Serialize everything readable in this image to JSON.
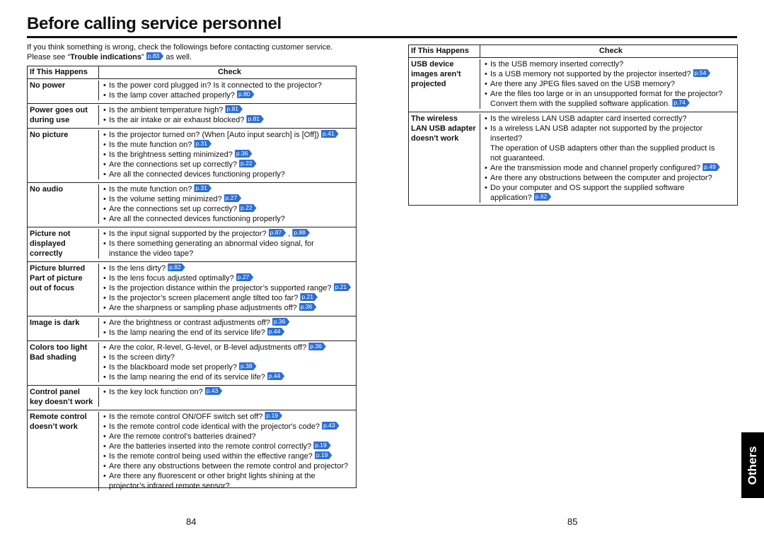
{
  "title": "Before calling service personnel",
  "intro": [
    [
      "If you think something is wrong, check the followings before contacting customer service."
    ],
    [
      "Please see “",
      {
        "b": "Trouble indications"
      },
      "” ",
      {
        "ref": "p.83"
      },
      " as well."
    ]
  ],
  "left_table": {
    "header": [
      "If This Happens",
      "Check"
    ],
    "rows": [
      {
        "problem": [
          "No power"
        ],
        "checks": [
          [
            [
              "Is the power cord plugged in? Is it connected to the projector?"
            ]
          ],
          [
            [
              "Is the lamp cover attached properly? ",
              {
                "ref": "p.80"
              }
            ]
          ]
        ]
      },
      {
        "problem": [
          "Power goes out",
          "during use"
        ],
        "checks": [
          [
            [
              "Is the ambient temperature high? ",
              {
                "ref": "p.81"
              }
            ]
          ],
          [
            [
              "Is the air intake or air exhaust blocked? ",
              {
                "ref": "p.81"
              }
            ]
          ]
        ]
      },
      {
        "problem": [
          "No picture"
        ],
        "checks": [
          [
            [
              "Is the projector turned on? (When [Auto input search] is [Off]) ",
              {
                "ref": "p.41"
              }
            ]
          ],
          [
            [
              "Is the mute function on? ",
              {
                "ref": "p.31"
              }
            ]
          ],
          [
            [
              "Is the brightness setting minimized? ",
              {
                "ref": "p.36"
              }
            ]
          ],
          [
            [
              "Are the connections set up correctly? ",
              {
                "ref": "p.22"
              }
            ]
          ],
          [
            [
              "Are all the connected devices functioning properly?"
            ]
          ]
        ]
      },
      {
        "problem": [
          "No audio"
        ],
        "checks": [
          [
            [
              "Is the mute function on? ",
              {
                "ref": "p.31"
              }
            ]
          ],
          [
            [
              "Is the volume setting minimized? ",
              {
                "ref": "p.27"
              }
            ]
          ],
          [
            [
              "Are the connections set up correctly? ",
              {
                "ref": "p.22"
              }
            ]
          ],
          [
            [
              "Are all the connected devices functioning properly?"
            ]
          ]
        ]
      },
      {
        "problem": [
          "Picture not",
          "displayed",
          "correctly"
        ],
        "checks": [
          [
            [
              "Is the input signal supported by the projector? ",
              {
                "ref": "p.87"
              },
              " , ",
              {
                "ref": "p.88"
              }
            ]
          ],
          [
            [
              "Is there something generating an abnormal video signal, for"
            ],
            [
              "instance the video tape?"
            ]
          ]
        ]
      },
      {
        "problem": [
          "Picture blurred",
          "Part of picture",
          "out of focus"
        ],
        "checks": [
          [
            [
              "Is the lens dirty? ",
              {
                "ref": "p.82"
              }
            ]
          ],
          [
            [
              "Is the lens focus adjusted optimally? ",
              {
                "ref": "p.27"
              }
            ]
          ],
          [
            [
              "Is the projection distance within the projector’s supported range? ",
              {
                "ref": "p.21"
              }
            ]
          ],
          [
            [
              "Is the projector’s screen placement angle tilted too far? ",
              {
                "ref": "p.21"
              }
            ]
          ],
          [
            [
              "Are the sharpness or sampling phase adjustments off? ",
              {
                "ref": "p.36"
              }
            ]
          ]
        ]
      },
      {
        "problem": [
          "Image is dark"
        ],
        "checks": [
          [
            [
              "Are the brightness or contrast adjustments off? ",
              {
                "ref": "p.36"
              }
            ]
          ],
          [
            [
              "Is the lamp nearing the end of its service life? ",
              {
                "ref": "p.44"
              }
            ]
          ]
        ]
      },
      {
        "problem": [
          "Colors too light",
          "Bad shading"
        ],
        "checks": [
          [
            [
              "Are the color, R-level, G-level, or B-level adjustments off? ",
              {
                "ref": "p.36"
              }
            ]
          ],
          [
            [
              "Is the screen dirty?"
            ]
          ],
          [
            [
              "Is the blackboard mode set properly? ",
              {
                "ref": "p.38"
              }
            ]
          ],
          [
            [
              "Is the lamp nearing the end of its service life? ",
              {
                "ref": "p.44"
              }
            ]
          ]
        ]
      },
      {
        "problem": [
          "Control panel",
          "key doesn’t work"
        ],
        "checks": [
          [
            [
              "Is the key lock function on? ",
              {
                "ref": "p.43"
              }
            ]
          ]
        ]
      },
      {
        "problem": [
          "Remote control",
          "doesn’t work"
        ],
        "checks": [
          [
            [
              "Is the remote control ON/OFF switch set off? ",
              {
                "ref": "p.19"
              }
            ]
          ],
          [
            [
              "Is the remote control code identical with the projector's code? ",
              {
                "ref": "p.43"
              }
            ]
          ],
          [
            [
              "Are the remote control’s batteries drained?"
            ]
          ],
          [
            [
              "Are the batteries inserted into the remote control correctly? ",
              {
                "ref": "p.19"
              }
            ]
          ],
          [
            [
              "Is the remote control being used within the effective range? ",
              {
                "ref": "p.19"
              }
            ]
          ],
          [
            [
              "Are there any obstructions between the remote control and projector?"
            ]
          ],
          [
            [
              "Are there any fluorescent or other bright lights shining at the"
            ],
            [
              "projector’s infrared remote sensor?"
            ]
          ]
        ]
      }
    ]
  },
  "right_table": {
    "header": [
      "If This Happens",
      "Check"
    ],
    "rows": [
      {
        "problem": [
          "USB device",
          "images aren't",
          "projected"
        ],
        "checks": [
          [
            [
              "Is the USB memory inserted correctly?"
            ]
          ],
          [
            [
              "Is a USB memory not supported by the projector inserted? ",
              {
                "ref": "p.54"
              }
            ]
          ],
          [
            [
              "Are there any JPEG files saved on the USB memory?"
            ]
          ],
          [
            [
              "Are the files too large or in an unsupported format for the projector?"
            ],
            [
              "Convert them with the supplied software application. ",
              {
                "ref": "p.74"
              }
            ]
          ]
        ]
      },
      {
        "problem": [
          "The wireless",
          "LAN USB adapter",
          "doesn't work"
        ],
        "checks": [
          [
            [
              "Is the wireless LAN USB adapter card inserted correctly?"
            ]
          ],
          [
            [
              "Is a wireless LAN USB adapter not supported by the projector"
            ],
            [
              "inserted?"
            ],
            [
              "The operation of USB adapters other than the supplied product is"
            ],
            [
              "not guaranteed."
            ]
          ],
          [
            [
              "Are the transmission mode and channel properly configured? ",
              {
                "ref": "p.49"
              }
            ]
          ],
          [
            [
              "Are there any obstructions between the computer and projector?"
            ]
          ],
          [
            [
              "Do your computer and OS support the supplied software"
            ],
            [
              "application? ",
              {
                "ref": "p.62"
              }
            ]
          ]
        ]
      }
    ]
  },
  "side_tab": "Others",
  "page_numbers": [
    "84",
    "85"
  ]
}
